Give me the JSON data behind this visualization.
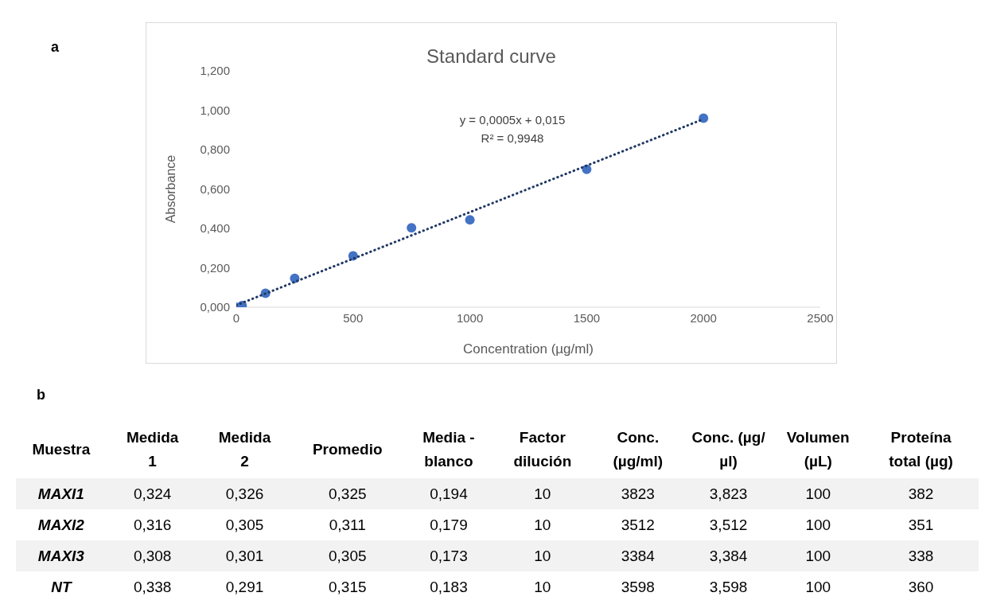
{
  "chart_data": [
    {
      "type": "scatter",
      "title": "Standard curve",
      "xlabel": "Concentration (µg/ml)",
      "ylabel": "Absorbance",
      "annotations": [
        "a",
        "y = 0,0005x + 0,015",
        "R² = 0,9948"
      ],
      "xlim": [
        0,
        2500
      ],
      "xticks": [
        0,
        500,
        1000,
        1500,
        2000,
        2500
      ],
      "ylim": [
        0,
        1.2
      ],
      "yticks": [
        {
          "value": 0,
          "label": "0,000"
        },
        {
          "value": 0.2,
          "label": "0,200"
        },
        {
          "value": 0.4,
          "label": "0,400"
        },
        {
          "value": 0.6,
          "label": "0,600"
        },
        {
          "value": 0.8,
          "label": "0,800"
        },
        {
          "value": 1,
          "label": "1,000"
        },
        {
          "value": 1.2,
          "label": "1,200"
        }
      ],
      "grid": false,
      "legend": false,
      "series": [
        {
          "type": "scatter",
          "color": "#4472c4",
          "marker": "circle",
          "x": [
            0,
            25,
            125,
            250,
            500,
            750,
            1000,
            1500,
            2000
          ],
          "values": [
            0.0,
            0.008,
            0.071,
            0.146,
            0.261,
            0.403,
            0.443,
            0.7,
            0.96
          ]
        },
        {
          "type": "line",
          "color": "#1f3864",
          "line_style": "dotted",
          "marker": "none",
          "x": [
            0,
            2000
          ],
          "values": [
            0.01,
            0.955
          ]
        }
      ]
    },
    {
      "type": "other",
      "annotations": [
        "b"
      ],
      "ylabel": "Muestra",
      "categories": [
        "Medida 1",
        "Medida 2",
        "Promedio",
        "Media - blanco",
        "Factor dilución",
        "Conc. (µg/ml)",
        "Conc. (µg/µl)",
        "Volumen (µL)",
        "Proteína total (µg)"
      ],
      "y_categories": [
        "MAXI1",
        "MAXI2",
        "MAXI3",
        "NT"
      ],
      "cell_labels": [
        [
          "0,324",
          "0,326",
          "0,325",
          "0,194",
          "10",
          "3823",
          "3,823",
          "100",
          "382"
        ],
        [
          "0,316",
          "0,305",
          "0,311",
          "0,179",
          "10",
          "3512",
          "3,512",
          "100",
          "351"
        ],
        [
          "0,308",
          "0,301",
          "0,305",
          "0,173",
          "10",
          "3384",
          "3,384",
          "100",
          "338"
        ],
        [
          "0,338",
          "0,291",
          "0,315",
          "0,183",
          "10",
          "3598",
          "3,598",
          "100",
          "360"
        ]
      ]
    }
  ]
}
